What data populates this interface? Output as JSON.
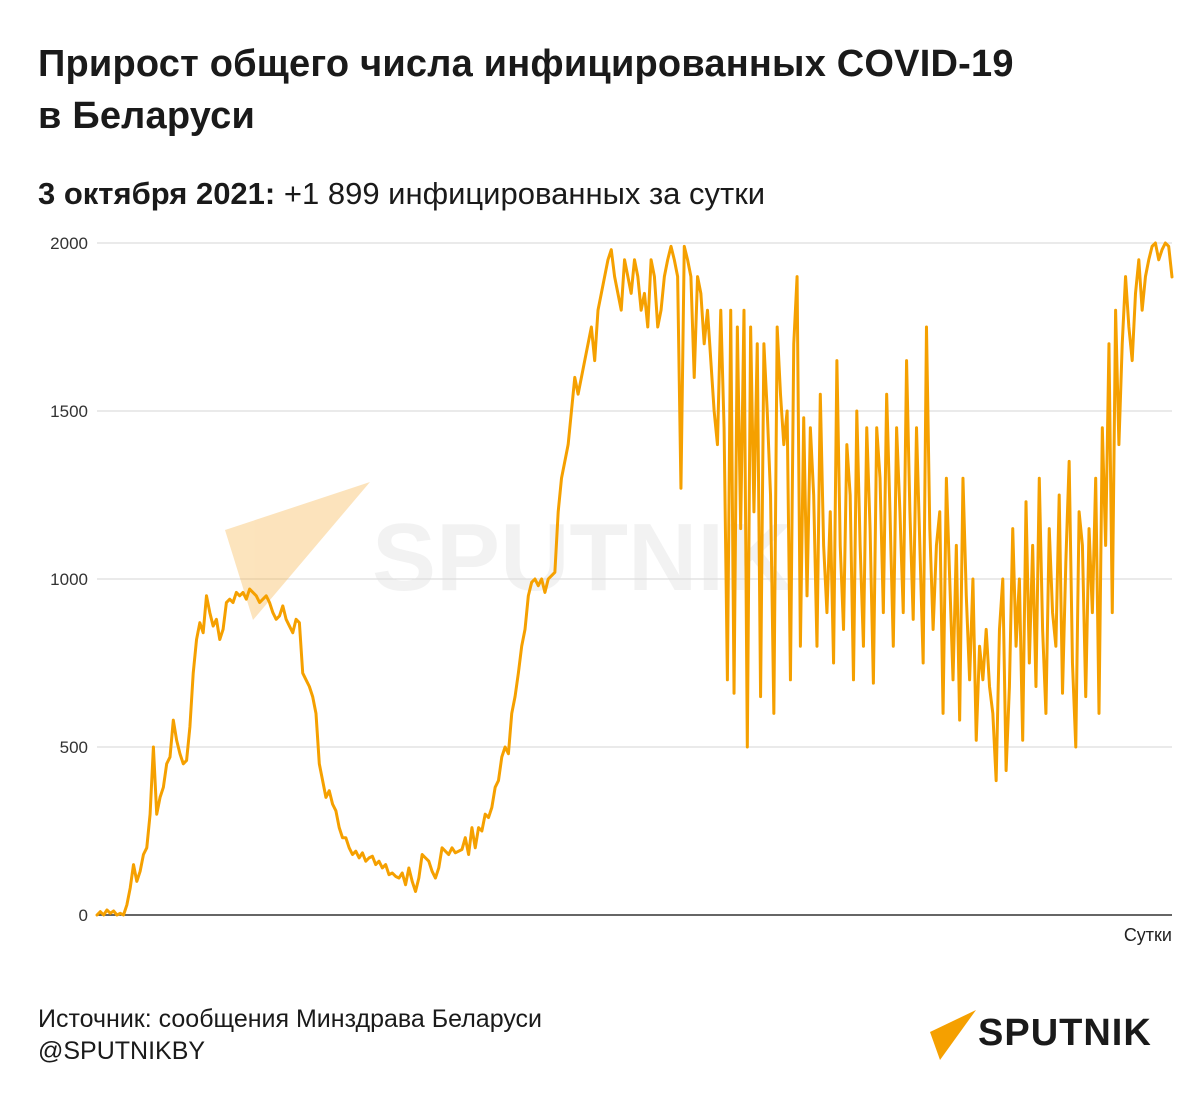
{
  "title": "Прирост общего числа инфицированных COVID-19 в Беларуси",
  "subtitle": {
    "date": "3 октября 2021:",
    "text": "+1 899 инфицированных за сутки"
  },
  "watermark": "SPUTNIK",
  "footer": {
    "source": "Источник: сообщения Минздрава Беларуси",
    "handle": "@SPUTNIKBY"
  },
  "logo": {
    "text": "SPUTNIK",
    "color": "#f5a000"
  },
  "chart_data": {
    "type": "line",
    "title": "",
    "xlabel": "Сутки",
    "ylabel": "",
    "ylim": [
      0,
      2000
    ],
    "yticks": [
      0,
      500,
      1000,
      1500,
      2000
    ],
    "grid": true,
    "legend": "none",
    "line_color": "#f5a000",
    "series": [
      {
        "values": [
          0,
          10,
          0,
          15,
          5,
          12,
          0,
          5,
          0,
          30,
          80,
          150,
          100,
          130,
          180,
          200,
          300,
          500,
          300,
          350,
          380,
          450,
          470,
          580,
          520,
          480,
          450,
          460,
          560,
          720,
          820,
          870,
          840,
          950,
          900,
          860,
          880,
          820,
          850,
          930,
          940,
          930,
          960,
          950,
          960,
          940,
          970,
          960,
          950,
          930,
          940,
          950,
          930,
          900,
          880,
          890,
          920,
          880,
          860,
          840,
          880,
          870,
          720,
          700,
          680,
          650,
          600,
          450,
          400,
          350,
          370,
          330,
          310,
          260,
          230,
          230,
          200,
          180,
          190,
          170,
          185,
          160,
          170,
          175,
          150,
          160,
          140,
          150,
          120,
          125,
          115,
          110,
          125,
          90,
          140,
          100,
          70,
          110,
          180,
          170,
          160,
          130,
          110,
          140,
          200,
          190,
          180,
          200,
          185,
          190,
          195,
          230,
          180,
          260,
          200,
          260,
          250,
          300,
          290,
          320,
          380,
          400,
          470,
          500,
          480,
          600,
          650,
          720,
          800,
          850,
          950,
          990,
          1000,
          980,
          1000,
          960,
          1000,
          1010,
          1020,
          1200,
          1300,
          1350,
          1400,
          1500,
          1600,
          1550,
          1600,
          1650,
          1700,
          1750,
          1650,
          1800,
          1850,
          1900,
          1950,
          1980,
          1900,
          1850,
          1800,
          1950,
          1900,
          1850,
          1950,
          1900,
          1800,
          1850,
          1750,
          1950,
          1900,
          1750,
          1800,
          1900,
          1950,
          1990,
          1950,
          1900,
          1270,
          1990,
          1950,
          1900,
          1600,
          1900,
          1850,
          1700,
          1800,
          1650,
          1500,
          1400,
          1800,
          1450,
          700,
          1800,
          660,
          1750,
          1150,
          1800,
          500,
          1750,
          1200,
          1700,
          650,
          1700,
          1500,
          1250,
          600,
          1750,
          1550,
          1400,
          1500,
          700,
          1700,
          1900,
          800,
          1480,
          950,
          1450,
          1250,
          800,
          1550,
          1100,
          900,
          1200,
          750,
          1650,
          1100,
          850,
          1400,
          1250,
          700,
          1500,
          1100,
          800,
          1450,
          1150,
          690,
          1450,
          1300,
          900,
          1550,
          1200,
          800,
          1450,
          1200,
          900,
          1650,
          1200,
          880,
          1450,
          1100,
          750,
          1750,
          1150,
          850,
          1100,
          1200,
          600,
          1300,
          1000,
          700,
          1100,
          580,
          1300,
          950,
          700,
          1000,
          520,
          800,
          700,
          850,
          680,
          600,
          400,
          850,
          1000,
          430,
          680,
          1150,
          800,
          1000,
          520,
          1230,
          750,
          1100,
          680,
          1300,
          850,
          600,
          1150,
          900,
          800,
          1250,
          660,
          1050,
          1350,
          750,
          500,
          1200,
          1100,
          650,
          1150,
          900,
          1300,
          600,
          1450,
          1100,
          1700,
          900,
          1800,
          1400,
          1700,
          1900,
          1750,
          1650,
          1850,
          1950,
          1800,
          1900,
          1950,
          1990,
          2000,
          1950,
          1980,
          2000,
          1990,
          1899
        ]
      }
    ]
  }
}
